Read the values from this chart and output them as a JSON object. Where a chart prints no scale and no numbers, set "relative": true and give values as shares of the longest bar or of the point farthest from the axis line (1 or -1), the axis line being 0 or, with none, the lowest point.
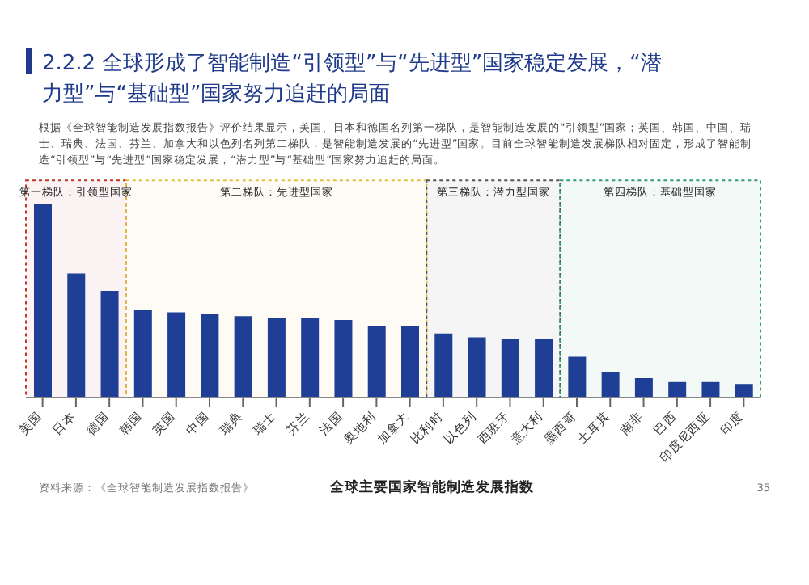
{
  "chart_data": {
    "type": "bar",
    "title": "2.2.2 全球形成了智能制造“引领型”与“先进型”国家稳定发展，“潜力型”与“基础型”国家努力追赶的局面",
    "subtitle": "全球主要国家智能制造发展指数",
    "categories": [
      "美国",
      "日本",
      "德国",
      "韩国",
      "英国",
      "中国",
      "瑞典",
      "瑞士",
      "芬兰",
      "法国",
      "奥地利",
      "加拿大",
      "比利时",
      "以色列",
      "西班牙",
      "意大利",
      "墨西哥",
      "土耳其",
      "南非",
      "巴西",
      "印度尼西亚",
      "印度"
    ],
    "values": [
      1,
      0.64,
      0.55,
      0.45,
      0.44,
      0.43,
      0.42,
      0.41,
      0.41,
      0.4,
      0.37,
      0.37,
      0.33,
      0.31,
      0.3,
      0.3,
      0.21,
      0.13,
      0.1,
      0.08,
      0.08,
      0.07
    ],
    "color": "#1f3f96",
    "relative": true,
    "bands": [
      {
        "axis": "x",
        "from": "美国",
        "to": "德国",
        "label": "第一梯队：引领型国家",
        "color": "#c0392b"
      },
      {
        "axis": "x",
        "from": "韩国",
        "to": "加拿大",
        "label": "第二梯队：先进型国家",
        "color": "#e0c040"
      },
      {
        "axis": "x",
        "from": "比利时",
        "to": "意大利",
        "label": "第三梯队：潜力型国家",
        "color": "#555555"
      },
      {
        "axis": "x",
        "from": "墨西哥",
        "to": "印度",
        "label": "第四梯队：基础型国家",
        "color": "#2e9e6e"
      }
    ],
    "annotations": [
      "根据《全球智能制造发展指数报告》评价结果显示，美国、日本和德国名列第一梯队，是智能制造发展的“引领型”国家；英国、韩国、中国、瑞士、瑞典、法国、芬兰、加拿大和以色列名列第二梯队，是智能制造发展的“先进型”国家。目前全球智能制造发展梯队相对固定，形成了智能制造“引领型”与“先进型”国家稳定发展，“潜力型”与“基础型”国家努力追赶的局面。",
      "资料来源：《全球智能制造发展指数报告》",
      "35"
    ]
  }
}
